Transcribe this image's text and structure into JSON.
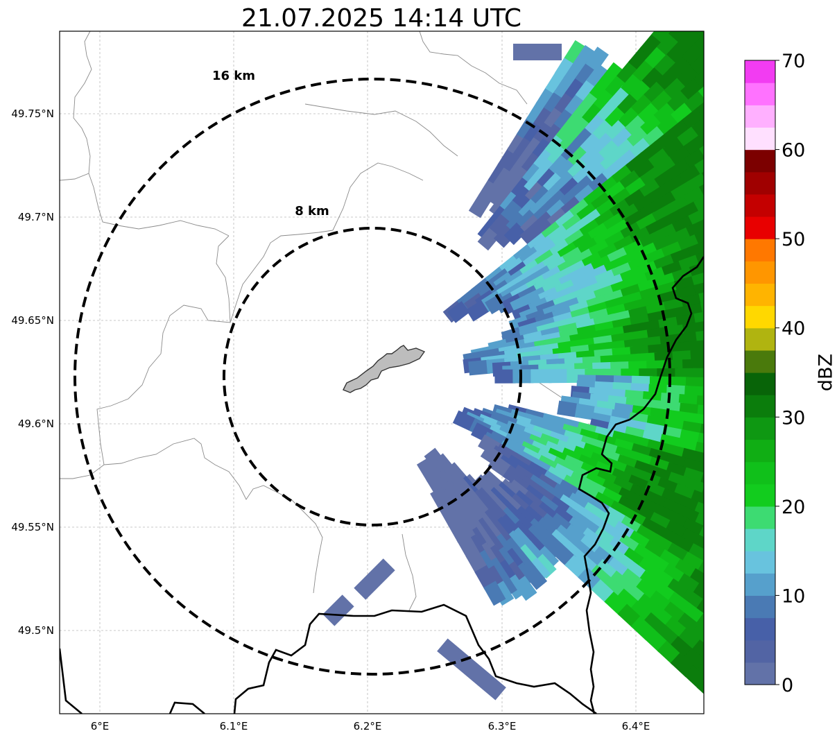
{
  "title": "21.07.2025 14:14 UTC",
  "axes": {
    "lon_ticks": [
      "6°E",
      "6.1°E",
      "6.2°E",
      "6.3°E",
      "6.4°E"
    ],
    "lat_ticks": [
      "49.75°N",
      "49.7°N",
      "49.65°N",
      "49.6°N",
      "49.55°N",
      "49.5°N"
    ]
  },
  "range_rings": [
    {
      "label": "8 km"
    },
    {
      "label": "16 km"
    }
  ],
  "colorbar": {
    "label": "dBZ",
    "ticks": [
      "0",
      "10",
      "20",
      "30",
      "40",
      "50",
      "60",
      "70"
    ],
    "colors": [
      "#6272a8",
      "#5264a4",
      "#4760a8",
      "#4a7ab4",
      "#56a0cc",
      "#68c3de",
      "#5ed6c8",
      "#3ddb72",
      "#12cc1e",
      "#10c01a",
      "#10ae14",
      "#0e9812",
      "#0b7d0c",
      "#086408",
      "#4a7a0c",
      "#b0b410",
      "#ffd800",
      "#ffb400",
      "#ff9600",
      "#ff7800",
      "#e80000",
      "#c40000",
      "#a00000",
      "#7c0000",
      "#ffe0ff",
      "#ffb0ff",
      "#ff72ff",
      "#f23cf2"
    ]
  }
}
